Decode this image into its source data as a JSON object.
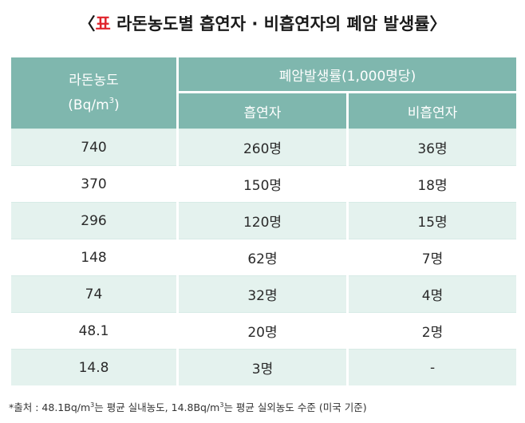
{
  "title": {
    "open_bracket": "〈",
    "accent": "표",
    "text": "라돈농도별 흡연자 · 비흡연자의 폐암 발생률",
    "close_bracket": "〉"
  },
  "table": {
    "header_radon_line1": "라돈농도",
    "header_radon_line2": "(Bq/m",
    "header_radon_sup": "3",
    "header_radon_close": ")",
    "header_group": "폐암발생률(1,000명당)",
    "header_smoker": "흡연자",
    "header_nonsmoker": "비흡연자",
    "rows": [
      {
        "radon": "740",
        "smoker": "260명",
        "nonsmoker": "36명"
      },
      {
        "radon": "370",
        "smoker": "150명",
        "nonsmoker": "18명"
      },
      {
        "radon": "296",
        "smoker": "120명",
        "nonsmoker": "15명"
      },
      {
        "radon": "148",
        "smoker": "62명",
        "nonsmoker": "7명"
      },
      {
        "radon": "74",
        "smoker": "32명",
        "nonsmoker": "4명"
      },
      {
        "radon": "48.1",
        "smoker": "20명",
        "nonsmoker": "2명"
      },
      {
        "radon": "14.8",
        "smoker": "3명",
        "nonsmoker": "-"
      }
    ]
  },
  "footnote": {
    "part1": "*출처 : 48.1Bq/m",
    "sup1": "3",
    "part2": "는 평균 실내농도, 14.8Bq/m",
    "sup2": "3",
    "part3": "는 평균 실외농도 수준 (미국 기준)"
  }
}
